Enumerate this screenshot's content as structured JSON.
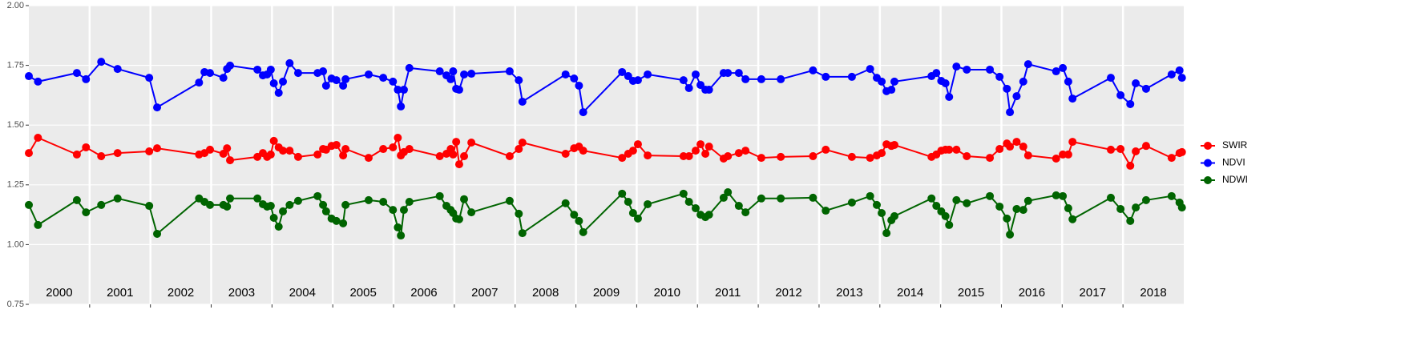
{
  "chart_data": {
    "type": "line",
    "x": [
      2000.0,
      2000.15,
      2000.79,
      2000.94,
      2001.19,
      2001.46,
      2001.98,
      2002.11,
      2002.8,
      2002.89,
      2002.98,
      2003.2,
      2003.26,
      2003.31,
      2003.76,
      2003.85,
      2003.92,
      2003.98,
      2004.03,
      2004.11,
      2004.18,
      2004.29,
      2004.43,
      2004.75,
      2004.84,
      2004.89,
      2004.98,
      2005.06,
      2005.17,
      2005.21,
      2005.59,
      2005.83,
      2005.99,
      2006.07,
      2006.12,
      2006.17,
      2006.26,
      2006.76,
      2006.87,
      2006.94,
      2006.98,
      2007.03,
      2007.08,
      2007.16,
      2007.28,
      2007.91,
      2008.06,
      2008.12,
      2008.83,
      2008.97,
      2009.05,
      2009.12,
      2009.76,
      2009.86,
      2009.94,
      2010.02,
      2010.18,
      2010.77,
      2010.86,
      2010.97,
      2011.05,
      2011.13,
      2011.19,
      2011.43,
      2011.5,
      2011.68,
      2011.79,
      2012.05,
      2012.37,
      2012.9,
      2013.11,
      2013.54,
      2013.84,
      2013.95,
      2014.03,
      2014.11,
      2014.19,
      2014.24,
      2014.85,
      2014.93,
      2015.01,
      2015.08,
      2015.14,
      2015.26,
      2015.43,
      2015.81,
      2015.97,
      2016.09,
      2016.14,
      2016.25,
      2016.36,
      2016.44,
      2016.9,
      2017.01,
      2017.1,
      2017.17,
      2017.8,
      2017.96,
      2018.12,
      2018.21,
      2018.38,
      2018.8,
      2018.93,
      2018.97
    ],
    "series": [
      {
        "name": "SWIR",
        "color": "#ff0000",
        "values": [
          1.383,
          1.447,
          1.377,
          1.407,
          1.37,
          1.383,
          1.39,
          1.403,
          1.377,
          1.383,
          1.397,
          1.38,
          1.403,
          1.353,
          1.367,
          1.383,
          1.367,
          1.377,
          1.434,
          1.407,
          1.393,
          1.393,
          1.367,
          1.377,
          1.4,
          1.397,
          1.413,
          1.417,
          1.373,
          1.4,
          1.363,
          1.4,
          1.407,
          1.447,
          1.373,
          1.387,
          1.4,
          1.37,
          1.38,
          1.4,
          1.377,
          1.43,
          1.336,
          1.37,
          1.427,
          1.37,
          1.4,
          1.427,
          1.38,
          1.403,
          1.41,
          1.393,
          1.363,
          1.38,
          1.393,
          1.42,
          1.373,
          1.37,
          1.37,
          1.393,
          1.42,
          1.38,
          1.41,
          1.36,
          1.37,
          1.383,
          1.393,
          1.363,
          1.367,
          1.37,
          1.397,
          1.367,
          1.363,
          1.373,
          1.383,
          1.42,
          1.413,
          1.417,
          1.367,
          1.377,
          1.393,
          1.397,
          1.397,
          1.397,
          1.37,
          1.363,
          1.4,
          1.423,
          1.41,
          1.43,
          1.41,
          1.373,
          1.36,
          1.377,
          1.377,
          1.43,
          1.397,
          1.4,
          1.33,
          1.39,
          1.413,
          1.363,
          1.383,
          1.387
        ]
      },
      {
        "name": "NDVI",
        "color": "#0000ff",
        "values": [
          1.705,
          1.682,
          1.718,
          1.692,
          1.765,
          1.735,
          1.698,
          1.574,
          1.678,
          1.722,
          1.718,
          1.698,
          1.735,
          1.749,
          1.732,
          1.708,
          1.712,
          1.732,
          1.675,
          1.635,
          1.682,
          1.759,
          1.718,
          1.718,
          1.725,
          1.665,
          1.695,
          1.688,
          1.665,
          1.692,
          1.712,
          1.698,
          1.682,
          1.648,
          1.578,
          1.648,
          1.739,
          1.725,
          1.708,
          1.692,
          1.725,
          1.652,
          1.648,
          1.712,
          1.715,
          1.725,
          1.688,
          1.598,
          1.712,
          1.695,
          1.665,
          1.554,
          1.722,
          1.705,
          1.685,
          1.688,
          1.712,
          1.688,
          1.655,
          1.712,
          1.668,
          1.648,
          1.648,
          1.718,
          1.718,
          1.718,
          1.692,
          1.692,
          1.692,
          1.729,
          1.702,
          1.702,
          1.735,
          1.698,
          1.682,
          1.642,
          1.648,
          1.682,
          1.705,
          1.718,
          1.685,
          1.675,
          1.618,
          1.745,
          1.732,
          1.732,
          1.702,
          1.652,
          1.554,
          1.621,
          1.682,
          1.755,
          1.725,
          1.739,
          1.682,
          1.611,
          1.698,
          1.625,
          1.588,
          1.675,
          1.652,
          1.712,
          1.729,
          1.698
        ]
      },
      {
        "name": "NDWI",
        "color": "#006400",
        "values": [
          1.166,
          1.082,
          1.186,
          1.135,
          1.166,
          1.193,
          1.162,
          1.045,
          1.193,
          1.179,
          1.166,
          1.166,
          1.159,
          1.193,
          1.193,
          1.169,
          1.159,
          1.162,
          1.112,
          1.075,
          1.139,
          1.166,
          1.183,
          1.203,
          1.166,
          1.139,
          1.109,
          1.099,
          1.089,
          1.166,
          1.186,
          1.179,
          1.145,
          1.072,
          1.038,
          1.145,
          1.179,
          1.203,
          1.162,
          1.145,
          1.132,
          1.109,
          1.106,
          1.19,
          1.135,
          1.183,
          1.129,
          1.048,
          1.173,
          1.125,
          1.099,
          1.052,
          1.213,
          1.179,
          1.132,
          1.109,
          1.169,
          1.213,
          1.179,
          1.152,
          1.125,
          1.115,
          1.125,
          1.196,
          1.219,
          1.162,
          1.135,
          1.193,
          1.193,
          1.196,
          1.142,
          1.176,
          1.203,
          1.166,
          1.132,
          1.048,
          1.102,
          1.119,
          1.193,
          1.162,
          1.139,
          1.119,
          1.082,
          1.186,
          1.173,
          1.203,
          1.159,
          1.109,
          1.042,
          1.149,
          1.145,
          1.183,
          1.206,
          1.203,
          1.152,
          1.106,
          1.196,
          1.149,
          1.099,
          1.155,
          1.186,
          1.203,
          1.176,
          1.155
        ]
      }
    ],
    "xlim": [
      2000,
      2019
    ],
    "xticks": [
      2001,
      2002,
      2003,
      2004,
      2005,
      2006,
      2007,
      2008,
      2009,
      2010,
      2011,
      2012,
      2013,
      2014,
      2015,
      2016,
      2017,
      2018
    ],
    "ylim": [
      0.75,
      2.0
    ],
    "yticks": [
      0.75,
      {
        "value": 1.0,
        "label": "1.00"
      },
      1.25,
      {
        "value": 1.5,
        "label": "1.50"
      },
      1.75,
      {
        "value": 2.0,
        "label": "2.00"
      }
    ],
    "year_labels": [
      "2000",
      "2001",
      "2002",
      "2003",
      "2004",
      "2005",
      "2006",
      "2007",
      "2008",
      "2009",
      "2010",
      "2011",
      "2012",
      "2013",
      "2014",
      "2015",
      "2016",
      "2017",
      "2018"
    ],
    "grid": true,
    "legend": "right"
  }
}
